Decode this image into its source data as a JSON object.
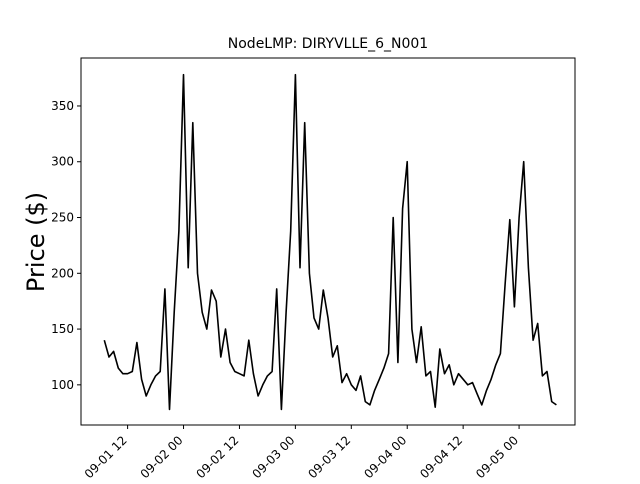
{
  "chart_data": {
    "type": "line",
    "title": "NodeLMP: DIRYVLLE_6_N001",
    "y_label": "Price ($)",
    "color": "#000000",
    "x": [
      "09-01 07",
      "09-01 08",
      "09-01 09",
      "09-01 10",
      "09-01 11",
      "09-01 12",
      "09-01 13",
      "09-01 14",
      "09-01 15",
      "09-01 16",
      "09-01 17",
      "09-01 18",
      "09-01 19",
      "09-01 20",
      "09-01 21",
      "09-01 22",
      "09-01 23",
      "09-02 00",
      "09-02 01",
      "09-02 02",
      "09-02 03",
      "09-02 04",
      "09-02 05",
      "09-02 06",
      "09-02 07",
      "09-02 08",
      "09-02 09",
      "09-02 10",
      "09-02 11",
      "09-02 12",
      "09-02 13",
      "09-02 14",
      "09-02 15",
      "09-02 16",
      "09-02 17",
      "09-02 18",
      "09-02 19",
      "09-02 20",
      "09-02 21",
      "09-02 22",
      "09-02 23",
      "09-03 00",
      "09-03 01",
      "09-03 02",
      "09-03 03",
      "09-03 04",
      "09-03 05",
      "09-03 06",
      "09-03 07",
      "09-03 08",
      "09-03 09",
      "09-03 10",
      "09-03 11",
      "09-03 12",
      "09-03 13",
      "09-03 14",
      "09-03 15",
      "09-03 16",
      "09-03 17",
      "09-03 18",
      "09-03 19",
      "09-03 20",
      "09-03 21",
      "09-03 22",
      "09-03 23",
      "09-04 00",
      "09-04 01",
      "09-04 02",
      "09-04 03",
      "09-04 04",
      "09-04 05",
      "09-04 06",
      "09-04 07",
      "09-04 08",
      "09-04 09",
      "09-04 10",
      "09-04 11",
      "09-04 12",
      "09-04 13",
      "09-04 14",
      "09-04 15",
      "09-04 16",
      "09-04 17",
      "09-04 18",
      "09-04 19",
      "09-04 20",
      "09-04 21",
      "09-04 22",
      "09-04 23",
      "09-05 00",
      "09-05 01",
      "09-05 02",
      "09-05 03",
      "09-05 04",
      "09-05 05",
      "09-05 06",
      "09-05 07",
      "09-05 08"
    ],
    "values": [
      140,
      125,
      130,
      115,
      110,
      110,
      112,
      138,
      105,
      90,
      100,
      108,
      112,
      186,
      78,
      165,
      238,
      378,
      205,
      335,
      200,
      165,
      150,
      185,
      175,
      125,
      150,
      120,
      112,
      110,
      108,
      140,
      110,
      90,
      100,
      108,
      112,
      186,
      78,
      165,
      238,
      378,
      205,
      335,
      200,
      160,
      150,
      185,
      160,
      125,
      135,
      102,
      110,
      100,
      95,
      108,
      85,
      82,
      95,
      105,
      115,
      128,
      250,
      120,
      258,
      300,
      150,
      120,
      152,
      108,
      112,
      80,
      132,
      110,
      118,
      100,
      110,
      105,
      100,
      102,
      92,
      82,
      95,
      105,
      118,
      128,
      190,
      248,
      170,
      250,
      300,
      205,
      140,
      155,
      108,
      112,
      85,
      82
    ],
    "xlim": [
      "09-01 02",
      "09-05 12"
    ],
    "xticks": [
      "09-01 12",
      "09-02 00",
      "09-02 12",
      "09-03 00",
      "09-03 12",
      "09-04 00",
      "09-04 12",
      "09-05 00"
    ],
    "ylim": [
      64,
      393
    ],
    "yticks": [
      100,
      150,
      200,
      250,
      300,
      350
    ]
  }
}
